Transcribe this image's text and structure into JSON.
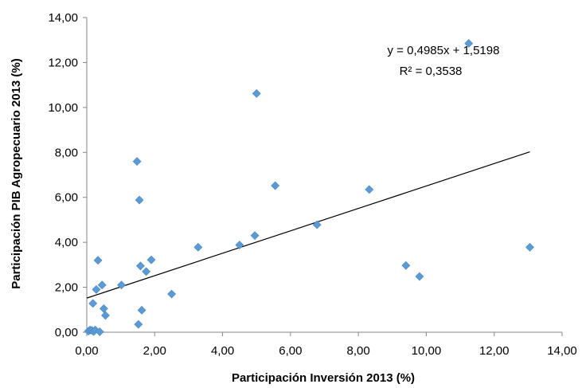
{
  "chart_data": {
    "type": "scatter",
    "title": "",
    "xlabel": "Participación Inversión 2013 (%)",
    "ylabel": "Participación PIB  Agropecuario 2013 (%)",
    "xlim": [
      0,
      14
    ],
    "ylim": [
      0,
      14
    ],
    "x_ticks": [
      "0,00",
      "2,00",
      "4,00",
      "6,00",
      "8,00",
      "10,00",
      "12,00",
      "14,00"
    ],
    "y_ticks": [
      "0,00",
      "2,00",
      "4,00",
      "6,00",
      "8,00",
      "10,00",
      "12,00",
      "14,00"
    ],
    "grid": false,
    "legend": "none",
    "marker_color": "#5B9BD5",
    "trendline_color": "#000000",
    "trendline": {
      "slope": 0.4985,
      "intercept": 1.5198,
      "x_range": [
        0,
        13.05
      ],
      "equation": "y = 0,4985x + 1,5198",
      "r_squared": "R² = 0,3538"
    },
    "points": [
      {
        "x": 0.05,
        "y": 0.05
      },
      {
        "x": 0.1,
        "y": 0.1
      },
      {
        "x": 0.15,
        "y": 0.08
      },
      {
        "x": 0.2,
        "y": 0.03
      },
      {
        "x": 0.25,
        "y": 0.1
      },
      {
        "x": 0.38,
        "y": 0.02
      },
      {
        "x": 0.18,
        "y": 1.28
      },
      {
        "x": 0.28,
        "y": 1.9
      },
      {
        "x": 0.33,
        "y": 3.2
      },
      {
        "x": 0.45,
        "y": 2.1
      },
      {
        "x": 0.5,
        "y": 1.05
      },
      {
        "x": 0.55,
        "y": 0.75
      },
      {
        "x": 1.02,
        "y": 2.1
      },
      {
        "x": 1.48,
        "y": 7.6
      },
      {
        "x": 1.52,
        "y": 0.35
      },
      {
        "x": 1.55,
        "y": 5.88
      },
      {
        "x": 1.58,
        "y": 2.95
      },
      {
        "x": 1.62,
        "y": 0.98
      },
      {
        "x": 1.75,
        "y": 2.7
      },
      {
        "x": 1.9,
        "y": 3.22
      },
      {
        "x": 2.5,
        "y": 1.7
      },
      {
        "x": 3.28,
        "y": 3.78
      },
      {
        "x": 4.5,
        "y": 3.88
      },
      {
        "x": 4.95,
        "y": 4.3
      },
      {
        "x": 5.0,
        "y": 10.62
      },
      {
        "x": 5.55,
        "y": 6.52
      },
      {
        "x": 6.78,
        "y": 4.78
      },
      {
        "x": 8.32,
        "y": 6.35
      },
      {
        "x": 9.4,
        "y": 2.97
      },
      {
        "x": 9.8,
        "y": 2.48
      },
      {
        "x": 11.25,
        "y": 12.85
      },
      {
        "x": 13.05,
        "y": 3.78
      }
    ]
  }
}
